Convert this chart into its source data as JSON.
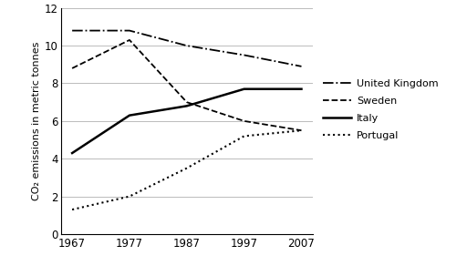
{
  "years": [
    1967,
    1977,
    1987,
    1997,
    2007
  ],
  "uk": [
    10.8,
    10.8,
    10.0,
    9.5,
    8.9
  ],
  "sweden": [
    8.8,
    10.3,
    7.0,
    6.0,
    5.5
  ],
  "italy": [
    4.3,
    6.3,
    6.8,
    7.7,
    7.7
  ],
  "portugal": [
    1.3,
    2.0,
    3.5,
    5.2,
    5.5
  ],
  "ylabel": "CO₂ emissions in metric tonnes",
  "ylim": [
    0,
    12
  ],
  "yticks": [
    0,
    2,
    4,
    6,
    8,
    10,
    12
  ],
  "xticks": [
    1967,
    1977,
    1987,
    1997,
    2007
  ],
  "legend_labels": [
    "United Kingdom",
    "Sweden",
    "Italy",
    "Portugal"
  ],
  "line_styles": {
    "uk": {
      "linestyle": "-.",
      "color": "black",
      "linewidth": 1.3
    },
    "sweden": {
      "linestyle": "--",
      "color": "black",
      "linewidth": 1.3
    },
    "italy": {
      "linestyle": "-",
      "color": "black",
      "linewidth": 1.8
    },
    "portugal": {
      "linestyle": ":",
      "color": "black",
      "linewidth": 1.5
    }
  },
  "grid_color": "#bbbbbb",
  "background_color": "#ffffff",
  "legend_fontsize": 8,
  "axis_fontsize": 8,
  "tick_fontsize": 8.5
}
